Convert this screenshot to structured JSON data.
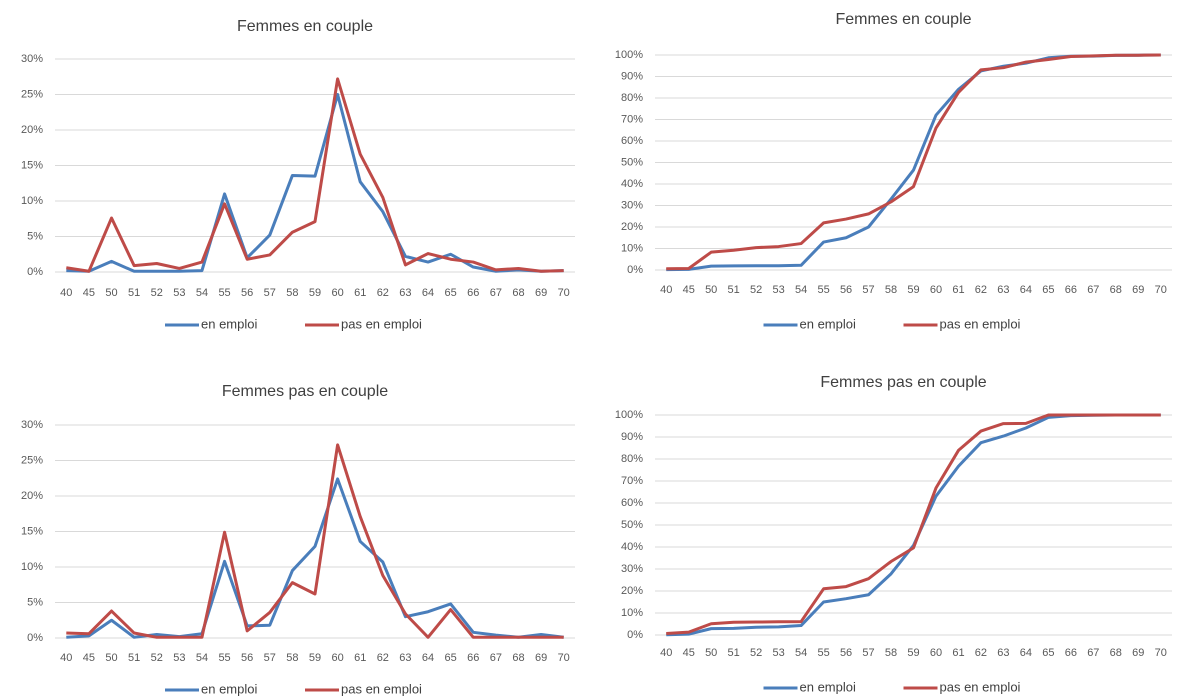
{
  "chart_data": [
    {
      "type": "line",
      "title": "Femmes en couple",
      "categories": [
        "40",
        "45",
        "50",
        "51",
        "52",
        "53",
        "54",
        "55",
        "56",
        "57",
        "58",
        "59",
        "60",
        "61",
        "62",
        "63",
        "64",
        "65",
        "66",
        "67",
        "68",
        "69",
        "70"
      ],
      "series": [
        {
          "name": "en emploi",
          "color": "#4a7ebb",
          "values": [
            0.2,
            0.1,
            1.5,
            0.1,
            0.1,
            0.1,
            0.2,
            11,
            2,
            5.2,
            13.6,
            13.5,
            25,
            12.7,
            8.5,
            2.2,
            1.4,
            2.5,
            0.7,
            0.1,
            0.3,
            0.1,
            0.2
          ]
        },
        {
          "name": "pas en emploi",
          "color": "#be4b48",
          "values": [
            0.6,
            0.1,
            7.6,
            0.9,
            1.2,
            0.5,
            1.4,
            9.6,
            1.8,
            2.4,
            5.6,
            7.1,
            27.2,
            16.6,
            10.5,
            1.0,
            2.6,
            1.8,
            1.4,
            0.3,
            0.5,
            0.1,
            0.2
          ]
        }
      ],
      "ylim": [
        0,
        30
      ],
      "yticks": [
        {
          "value": 0,
          "label": "0%"
        },
        {
          "value": 5,
          "label": "5%"
        },
        {
          "value": 10,
          "label": "10%"
        },
        {
          "value": 15,
          "label": "15%"
        },
        {
          "value": 20,
          "label": "20%"
        },
        {
          "value": 25,
          "label": "25%"
        },
        {
          "value": 30,
          "label": "30%"
        }
      ],
      "grid": true,
      "legend": "bottom"
    },
    {
      "type": "line",
      "title": "Femmes en couple",
      "categories": [
        "40",
        "45",
        "50",
        "51",
        "52",
        "53",
        "54",
        "55",
        "56",
        "57",
        "58",
        "59",
        "60",
        "61",
        "62",
        "63",
        "64",
        "65",
        "66",
        "67",
        "68",
        "69",
        "70"
      ],
      "series": [
        {
          "name": "en emploi",
          "color": "#4a7ebb",
          "values": [
            0.2,
            0.3,
            1.8,
            1.9,
            2,
            2,
            2.2,
            13,
            15,
            20,
            33,
            46.5,
            72,
            84,
            92.6,
            94.8,
            96.2,
            98.7,
            99.4,
            99.5,
            99.8,
            99.9,
            100
          ]
        },
        {
          "name": "pas en emploi",
          "color": "#be4b48",
          "values": [
            0.6,
            0.7,
            8.3,
            9.2,
            10.4,
            10.9,
            12.3,
            21.9,
            23.7,
            26.1,
            31.7,
            38.8,
            66,
            82.6,
            93.1,
            94.1,
            96.7,
            97.9,
            99.3,
            99.6,
            99.9,
            99.9,
            100
          ]
        }
      ],
      "ylim": [
        0,
        100
      ],
      "yticks": [
        {
          "value": 0,
          "label": "0%"
        },
        {
          "value": 10,
          "label": "10%"
        },
        {
          "value": 20,
          "label": "20%"
        },
        {
          "value": 30,
          "label": "30%"
        },
        {
          "value": 40,
          "label": "40%"
        },
        {
          "value": 50,
          "label": "50%"
        },
        {
          "value": 60,
          "label": "60%"
        },
        {
          "value": 70,
          "label": "70%"
        },
        {
          "value": 80,
          "label": "80%"
        },
        {
          "value": 90,
          "label": "90%"
        },
        {
          "value": 100,
          "label": "100%"
        }
      ],
      "grid": true,
      "legend": "bottom"
    },
    {
      "type": "line",
      "title": "Femmes pas en couple",
      "categories": [
        "40",
        "45",
        "50",
        "51",
        "52",
        "53",
        "54",
        "55",
        "56",
        "57",
        "58",
        "59",
        "60",
        "61",
        "62",
        "63",
        "64",
        "65",
        "66",
        "67",
        "68",
        "69",
        "70"
      ],
      "series": [
        {
          "name": "en emploi",
          "color": "#4a7ebb",
          "values": [
            0.1,
            0.3,
            2.5,
            0.1,
            0.5,
            0.2,
            0.6,
            10.8,
            1.7,
            1.8,
            9.5,
            12.9,
            22.4,
            13.6,
            10.7,
            3.0,
            3.7,
            4.8,
            0.8,
            0.4,
            0.1,
            0.5,
            0.1
          ]
        },
        {
          "name": "pas en emploi",
          "color": "#be4b48",
          "values": [
            0.7,
            0.6,
            3.8,
            0.7,
            0.1,
            0.1,
            0.1,
            14.9,
            1.0,
            3.6,
            7.8,
            6.2,
            27.2,
            17.1,
            8.8,
            3.4,
            0.1,
            4.0,
            0.1,
            0.1,
            0.1,
            0.1,
            0.1
          ]
        }
      ],
      "ylim": [
        0,
        30
      ],
      "yticks": [
        {
          "value": 0,
          "label": "0%"
        },
        {
          "value": 5,
          "label": "5%"
        },
        {
          "value": 10,
          "label": "10%"
        },
        {
          "value": 15,
          "label": "15%"
        },
        {
          "value": 20,
          "label": "20%"
        },
        {
          "value": 25,
          "label": "25%"
        },
        {
          "value": 30,
          "label": "30%"
        }
      ],
      "grid": true,
      "legend": "bottom"
    },
    {
      "type": "line",
      "title": "Femmes pas en couple",
      "categories": [
        "40",
        "45",
        "50",
        "51",
        "52",
        "53",
        "54",
        "55",
        "56",
        "57",
        "58",
        "59",
        "60",
        "61",
        "62",
        "63",
        "64",
        "65",
        "66",
        "67",
        "68",
        "69",
        "70"
      ],
      "series": [
        {
          "name": "en emploi",
          "color": "#4a7ebb",
          "values": [
            0.1,
            0.4,
            2.9,
            3,
            3.5,
            3.7,
            4.3,
            15,
            16.5,
            18.3,
            27.8,
            40.7,
            63.1,
            76.7,
            87.4,
            90.4,
            94.1,
            98.9,
            99.7,
            99.9,
            100,
            100,
            100
          ]
        },
        {
          "name": "pas en emploi",
          "color": "#be4b48",
          "values": [
            0.7,
            1.3,
            5.1,
            5.8,
            5.9,
            6,
            6.1,
            21,
            22,
            25.6,
            33.4,
            39.6,
            66.8,
            83.9,
            92.7,
            96.1,
            96.2,
            100,
            100,
            100,
            100,
            100,
            100
          ]
        }
      ],
      "ylim": [
        0,
        100
      ],
      "yticks": [
        {
          "value": 0,
          "label": "0%"
        },
        {
          "value": 10,
          "label": "10%"
        },
        {
          "value": 20,
          "label": "20%"
        },
        {
          "value": 30,
          "label": "30%"
        },
        {
          "value": 40,
          "label": "40%"
        },
        {
          "value": 50,
          "label": "50%"
        },
        {
          "value": 60,
          "label": "60%"
        },
        {
          "value": 70,
          "label": "70%"
        },
        {
          "value": 80,
          "label": "80%"
        },
        {
          "value": 90,
          "label": "90%"
        },
        {
          "value": 100,
          "label": "100%"
        }
      ],
      "grid": true,
      "legend": "bottom"
    }
  ]
}
